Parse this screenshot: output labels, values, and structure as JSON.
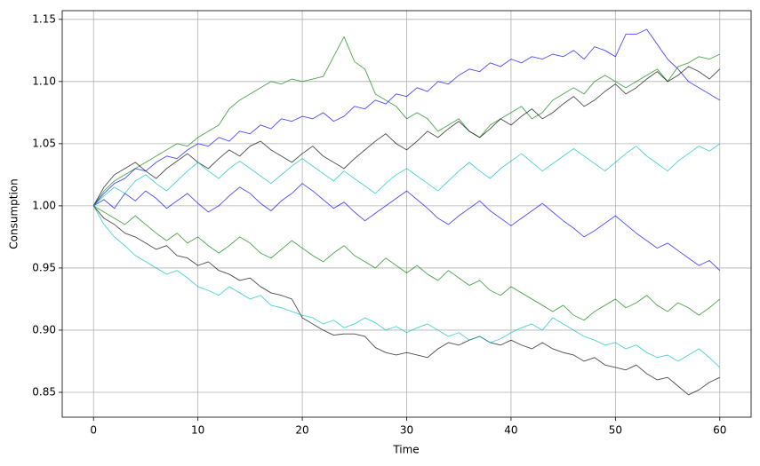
{
  "chart_data": {
    "type": "line",
    "xlabel": "Time",
    "ylabel": "Consumption",
    "grid": true,
    "xlim": [
      -3,
      63
    ],
    "ylim": [
      0.83,
      1.157
    ],
    "xticks": [
      0,
      10,
      20,
      30,
      40,
      50,
      60
    ],
    "yticks": [
      0.85,
      {
        "value": 0.9,
        "label": "0.90"
      },
      0.95,
      {
        "value": 1.0,
        "label": "1.00"
      },
      1.05,
      {
        "value": 1.1,
        "label": "1.10"
      },
      1.15
    ],
    "x": [
      0,
      1,
      2,
      3,
      4,
      5,
      6,
      7,
      8,
      9,
      10,
      11,
      12,
      13,
      14,
      15,
      16,
      17,
      18,
      19,
      20,
      21,
      22,
      23,
      24,
      25,
      26,
      27,
      28,
      29,
      30,
      31,
      32,
      33,
      34,
      35,
      36,
      37,
      38,
      39,
      40,
      41,
      42,
      43,
      44,
      45,
      46,
      47,
      48,
      49,
      50,
      51,
      52,
      53,
      54,
      55,
      56,
      57,
      58,
      59,
      60
    ],
    "series": [
      {
        "color": "#008000",
        "values": [
          1.0,
          1.012,
          1.02,
          1.025,
          1.03,
          1.035,
          1.04,
          1.045,
          1.05,
          1.048,
          1.055,
          1.06,
          1.065,
          1.078,
          1.085,
          1.09,
          1.095,
          1.1,
          1.098,
          1.102,
          1.1,
          1.102,
          1.104,
          1.12,
          1.136,
          1.116,
          1.11,
          1.09,
          1.085,
          1.08,
          1.07,
          1.075,
          1.07,
          1.06,
          1.065,
          1.07,
          1.06,
          1.055,
          1.065,
          1.07,
          1.075,
          1.08,
          1.07,
          1.075,
          1.085,
          1.09,
          1.095,
          1.09,
          1.1,
          1.105,
          1.1,
          1.095,
          1.1,
          1.105,
          1.11,
          1.1,
          1.112,
          1.115,
          1.12,
          1.118,
          1.122
        ]
      },
      {
        "color": "#0000ff",
        "values": [
          1.0,
          1.01,
          1.018,
          1.022,
          1.03,
          1.028,
          1.035,
          1.04,
          1.038,
          1.045,
          1.05,
          1.048,
          1.055,
          1.052,
          1.06,
          1.058,
          1.065,
          1.062,
          1.07,
          1.068,
          1.072,
          1.07,
          1.075,
          1.068,
          1.072,
          1.08,
          1.078,
          1.085,
          1.082,
          1.09,
          1.088,
          1.095,
          1.092,
          1.1,
          1.098,
          1.105,
          1.11,
          1.108,
          1.115,
          1.112,
          1.118,
          1.115,
          1.12,
          1.118,
          1.122,
          1.12,
          1.125,
          1.118,
          1.128,
          1.125,
          1.12,
          1.138,
          1.138,
          1.142,
          1.13,
          1.118,
          1.11,
          1.1,
          1.095,
          1.09,
          1.085
        ]
      },
      {
        "color": "#000000",
        "values": [
          1.0,
          0.99,
          0.985,
          0.978,
          0.975,
          0.97,
          0.965,
          0.968,
          0.96,
          0.958,
          0.952,
          0.955,
          0.948,
          0.945,
          0.94,
          0.942,
          0.935,
          0.93,
          0.928,
          0.925,
          0.91,
          0.905,
          0.9,
          0.896,
          0.897,
          0.897,
          0.895,
          0.886,
          0.882,
          0.88,
          0.882,
          0.88,
          0.878,
          0.885,
          0.89,
          0.888,
          0.892,
          0.895,
          0.89,
          0.888,
          0.892,
          0.888,
          0.885,
          0.89,
          0.885,
          0.882,
          0.88,
          0.875,
          0.878,
          0.872,
          0.87,
          0.868,
          0.872,
          0.865,
          0.86,
          0.862,
          0.855,
          0.848,
          0.852,
          0.858,
          0.862
        ]
      },
      {
        "color": "#00bfbf",
        "values": [
          1.0,
          0.985,
          0.975,
          0.968,
          0.96,
          0.955,
          0.95,
          0.945,
          0.948,
          0.942,
          0.935,
          0.932,
          0.928,
          0.935,
          0.93,
          0.925,
          0.928,
          0.92,
          0.918,
          0.915,
          0.912,
          0.91,
          0.905,
          0.908,
          0.902,
          0.905,
          0.91,
          0.906,
          0.9,
          0.903,
          0.898,
          0.902,
          0.905,
          0.9,
          0.895,
          0.898,
          0.892,
          0.895,
          0.89,
          0.893,
          0.898,
          0.902,
          0.905,
          0.9,
          0.91,
          0.905,
          0.9,
          0.895,
          0.892,
          0.888,
          0.89,
          0.885,
          0.888,
          0.882,
          0.878,
          0.88,
          0.875,
          0.88,
          0.885,
          0.878,
          0.87
        ]
      },
      {
        "color": "#0000ff",
        "values": [
          1.0,
          1.005,
          0.998,
          1.01,
          1.004,
          1.012,
          1.006,
          0.998,
          1.004,
          1.01,
          1.002,
          0.995,
          1.0,
          1.008,
          1.015,
          1.01,
          1.002,
          0.996,
          1.004,
          1.01,
          1.018,
          1.012,
          1.005,
          0.998,
          1.003,
          0.995,
          0.988,
          0.994,
          1.0,
          1.006,
          1.012,
          1.005,
          0.998,
          0.99,
          0.985,
          0.992,
          0.998,
          1.004,
          0.996,
          0.99,
          0.984,
          0.99,
          0.996,
          1.002,
          0.995,
          0.988,
          0.982,
          0.975,
          0.98,
          0.986,
          0.992,
          0.985,
          0.978,
          0.972,
          0.966,
          0.97,
          0.964,
          0.958,
          0.952,
          0.956,
          0.948
        ]
      },
      {
        "color": "#000000",
        "values": [
          1.0,
          1.015,
          1.025,
          1.03,
          1.035,
          1.028,
          1.022,
          1.03,
          1.036,
          1.042,
          1.035,
          1.03,
          1.038,
          1.045,
          1.04,
          1.048,
          1.052,
          1.045,
          1.04,
          1.035,
          1.042,
          1.048,
          1.04,
          1.035,
          1.03,
          1.038,
          1.045,
          1.052,
          1.058,
          1.05,
          1.045,
          1.052,
          1.06,
          1.055,
          1.062,
          1.068,
          1.06,
          1.055,
          1.062,
          1.07,
          1.065,
          1.072,
          1.078,
          1.07,
          1.075,
          1.082,
          1.088,
          1.08,
          1.085,
          1.092,
          1.098,
          1.09,
          1.095,
          1.102,
          1.108,
          1.1,
          1.105,
          1.112,
          1.108,
          1.102,
          1.11
        ]
      },
      {
        "color": "#008000",
        "values": [
          1.0,
          0.995,
          0.99,
          0.985,
          0.992,
          0.985,
          0.978,
          0.972,
          0.978,
          0.97,
          0.975,
          0.968,
          0.962,
          0.968,
          0.975,
          0.97,
          0.962,
          0.958,
          0.965,
          0.972,
          0.966,
          0.96,
          0.955,
          0.962,
          0.968,
          0.96,
          0.955,
          0.95,
          0.958,
          0.952,
          0.946,
          0.952,
          0.945,
          0.94,
          0.948,
          0.942,
          0.936,
          0.94,
          0.932,
          0.928,
          0.935,
          0.93,
          0.925,
          0.92,
          0.915,
          0.92,
          0.912,
          0.908,
          0.915,
          0.92,
          0.925,
          0.918,
          0.922,
          0.928,
          0.92,
          0.915,
          0.922,
          0.918,
          0.912,
          0.918,
          0.925
        ]
      },
      {
        "color": "#00bfbf",
        "values": [
          1.0,
          1.008,
          1.015,
          1.01,
          1.02,
          1.025,
          1.018,
          1.012,
          1.02,
          1.028,
          1.035,
          1.028,
          1.022,
          1.03,
          1.036,
          1.03,
          1.024,
          1.018,
          1.025,
          1.032,
          1.038,
          1.032,
          1.026,
          1.02,
          1.028,
          1.022,
          1.016,
          1.01,
          1.018,
          1.025,
          1.03,
          1.024,
          1.018,
          1.012,
          1.02,
          1.028,
          1.035,
          1.028,
          1.022,
          1.03,
          1.036,
          1.042,
          1.035,
          1.028,
          1.034,
          1.04,
          1.046,
          1.04,
          1.034,
          1.028,
          1.035,
          1.042,
          1.048,
          1.04,
          1.034,
          1.028,
          1.036,
          1.042,
          1.048,
          1.044,
          1.05
        ]
      }
    ]
  }
}
